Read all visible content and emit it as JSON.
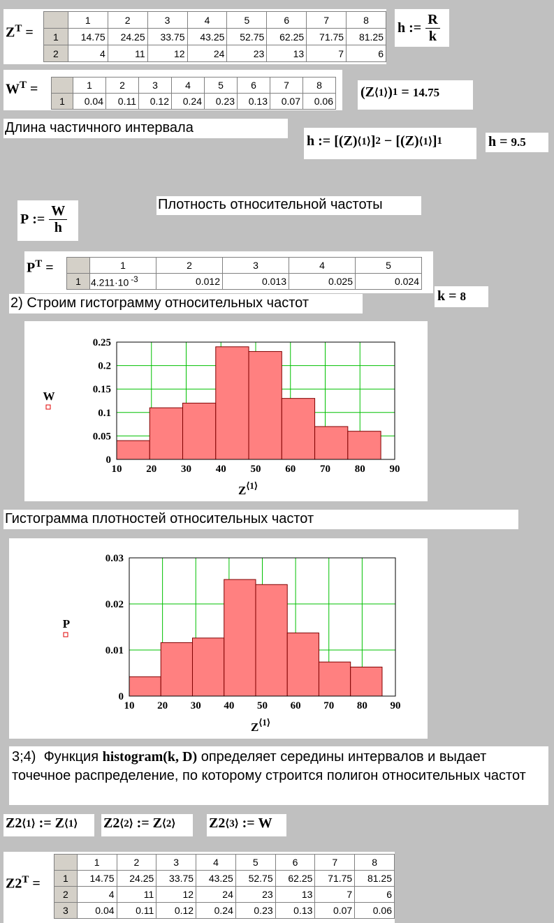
{
  "tables": [
    {
      "lhs": "Z",
      "sup": "T",
      "eq": "=",
      "columns": [
        1,
        2,
        3,
        4,
        5,
        6,
        7,
        8
      ],
      "rows": [
        {
          "index": 1,
          "cells": [
            14.75,
            24.25,
            33.75,
            43.25,
            52.75,
            62.25,
            71.75,
            81.25
          ]
        },
        {
          "index": 2,
          "cells": [
            4,
            11,
            12,
            24,
            23,
            13,
            7,
            6
          ]
        }
      ]
    },
    {
      "lhs": "W",
      "sup": "T",
      "eq": "=",
      "columns": [
        1,
        2,
        3,
        4,
        5,
        6,
        7,
        8
      ],
      "rows": [
        {
          "index": 1,
          "cells": [
            0.04,
            0.11,
            0.12,
            0.24,
            0.23,
            0.13,
            0.07,
            0.06
          ]
        }
      ]
    },
    {
      "lhs": "P",
      "sup": "T",
      "eq": "=",
      "columns": [
        1,
        2,
        3,
        4,
        5
      ],
      "rows": [
        {
          "index": 1,
          "cells": [
            {
              "mantissa": "4.211·10",
              "exponent": "-3"
            },
            0.012,
            0.013,
            0.025,
            0.024
          ]
        }
      ]
    },
    {
      "lhs": "Z2",
      "sup": "T",
      "eq": "=",
      "columns": [
        1,
        2,
        3,
        4,
        5,
        6,
        7,
        8
      ],
      "rows": [
        {
          "index": 1,
          "cells": [
            14.75,
            24.25,
            33.75,
            43.25,
            52.75,
            62.25,
            71.75,
            81.25
          ]
        },
        {
          "index": 2,
          "cells": [
            4,
            11,
            12,
            24,
            23,
            13,
            7,
            6
          ]
        },
        {
          "index": 3,
          "cells": [
            0.04,
            0.11,
            0.12,
            0.24,
            0.23,
            0.13,
            0.07,
            0.06
          ]
        }
      ]
    }
  ],
  "defs": {
    "h_def": {
      "lhs": "h",
      "op": ":=",
      "num": "R",
      "den": "k"
    },
    "z11": {
      "open": "(",
      "base": "Z",
      "sup": "⟨1⟩",
      "close": ")",
      "sub": "1",
      "op": "=",
      "value": 14.75
    },
    "h_formula": {
      "lhs": "h",
      "op": ":=",
      "left": "[(Z)",
      "sup": "⟨1⟩",
      "right": "]",
      "sub1": "2",
      "minus": "−",
      "sub2": "1"
    },
    "h_val": {
      "lhs": "h",
      "op": "=",
      "value": 9.5
    },
    "p_def": {
      "lhs": "P",
      "op": ":=",
      "num": "W",
      "den": "h"
    },
    "k_val": {
      "lhs": "k",
      "op": "=",
      "value": 8
    },
    "z2_1": {
      "lhs": "Z2",
      "lsup": "⟨1⟩",
      "op": ":=",
      "rhs": "Z",
      "rsup": "⟨1⟩"
    },
    "z2_2": {
      "lhs": "Z2",
      "lsup": "⟨2⟩",
      "op": ":=",
      "rhs": "Z",
      "rsup": "⟨2⟩"
    },
    "z2_3": {
      "lhs": "Z2",
      "lsup": "⟨3⟩",
      "op": ":=",
      "rhs": "W"
    }
  },
  "texts": {
    "interval": "Длина частичного интервала",
    "density": "Плотность относительной частоты",
    "step2": "2) Строим  гистограмму относительных частот",
    "hist2_title": "Гистограмма плотностей относительных частот",
    "step34_a": "3;4)  Функция ",
    "step34_fn": "histogram",
    "step34_args": "(k, D)",
    "step34_b": " определяет середины интервалов и выдает точечное распределение, по которому строится полигон относительных частот"
  },
  "chart_data": [
    {
      "type": "histogram",
      "ylabel": "W",
      "xlabel": "Z",
      "xlabel_sup": "⟨1⟩",
      "bins": [
        10,
        19.5,
        29,
        38.5,
        48,
        57.5,
        67,
        76.5,
        86
      ],
      "values": [
        0.04,
        0.11,
        0.12,
        0.24,
        0.23,
        0.13,
        0.07,
        0.06
      ],
      "color": "#ff8080",
      "grid": true,
      "grid_color": "#00c000",
      "xlim": [
        10,
        90
      ],
      "xticks": [
        10,
        20,
        30,
        40,
        50,
        60,
        70,
        80,
        90
      ],
      "ylim": [
        0,
        0.25
      ],
      "yticks": [
        0,
        0.05,
        0.1,
        0.15,
        0.2,
        0.25
      ]
    },
    {
      "type": "histogram",
      "ylabel": "P",
      "xlabel": "Z",
      "xlabel_sup": "⟨1⟩",
      "bins": [
        10,
        19.5,
        29,
        38.5,
        48,
        57.5,
        67,
        76.5,
        86
      ],
      "values": [
        0.0042,
        0.0116,
        0.0126,
        0.0253,
        0.0242,
        0.0137,
        0.0074,
        0.0063
      ],
      "color": "#ff8080",
      "grid": true,
      "grid_color": "#00c000",
      "xlim": [
        10,
        90
      ],
      "xticks": [
        10,
        20,
        30,
        40,
        50,
        60,
        70,
        80,
        90
      ],
      "ylim": [
        0,
        0.03
      ],
      "yticks": [
        0,
        0.01,
        0.02,
        0.03
      ]
    }
  ]
}
